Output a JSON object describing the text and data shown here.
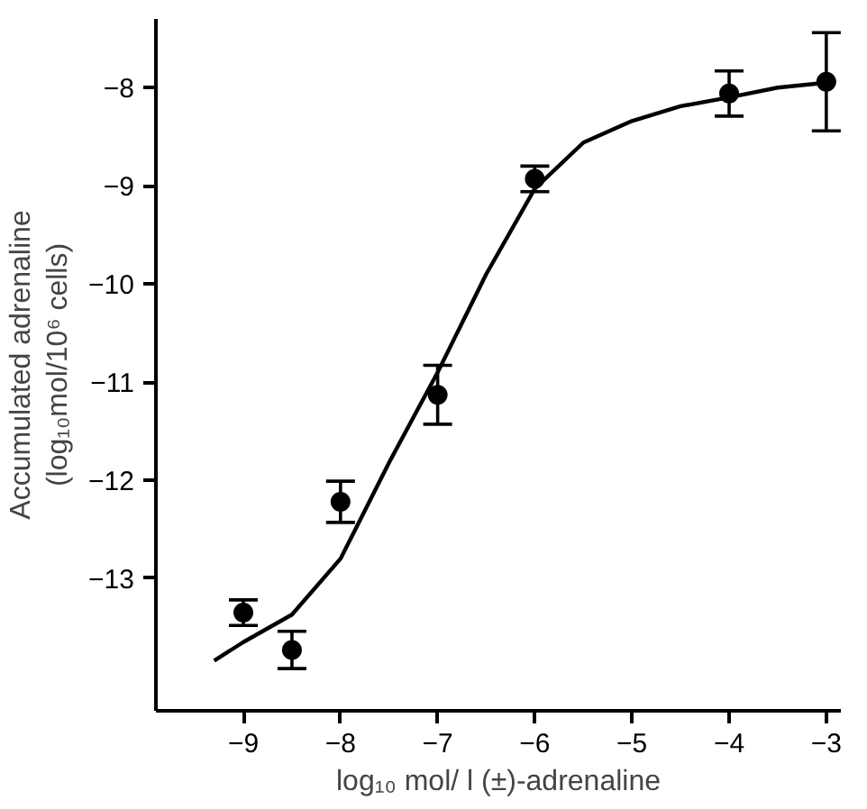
{
  "chart_data": {
    "type": "scatter",
    "xlabel": "log₁₀ mol/ l (±)-adrenaline",
    "ylabel": "Accumulated adrenaline\n(log₁₀mol/10⁶ cells)",
    "xlim": [
      -9.9,
      -2.85
    ],
    "ylim": [
      -14.35,
      -7.3
    ],
    "xticks": [
      -9,
      -8,
      -7,
      -6,
      -5,
      -4,
      -3
    ],
    "yticks": [
      -13,
      -12,
      -11,
      -10,
      -9,
      -8
    ],
    "grid": false,
    "series": [
      {
        "color": "#000000",
        "marker": "circle",
        "x": [
          -9,
          -8.5,
          -8,
          -7,
          -6,
          -4,
          -3
        ],
        "values": [
          -13.35,
          -13.73,
          -12.22,
          -11.13,
          -8.93,
          -8.06,
          -7.94
        ],
        "errors": [
          0.13,
          0.19,
          0.21,
          0.3,
          0.13,
          0.23,
          0.5
        ]
      },
      {
        "type": "line",
        "color": "#000000",
        "marker": "none",
        "line_style": "solid",
        "x": [
          -9.3,
          -9,
          -8.5,
          -8,
          -7.5,
          -7,
          -6.5,
          -6,
          -5.5,
          -5,
          -4.5,
          -4,
          -3.5,
          -3
        ],
        "values": [
          -13.84,
          -13.65,
          -13.37,
          -12.8,
          -11.82,
          -10.9,
          -9.9,
          -9.03,
          -8.56,
          -8.34,
          -8.19,
          -8.1,
          -8.0,
          -7.95
        ]
      }
    ]
  }
}
